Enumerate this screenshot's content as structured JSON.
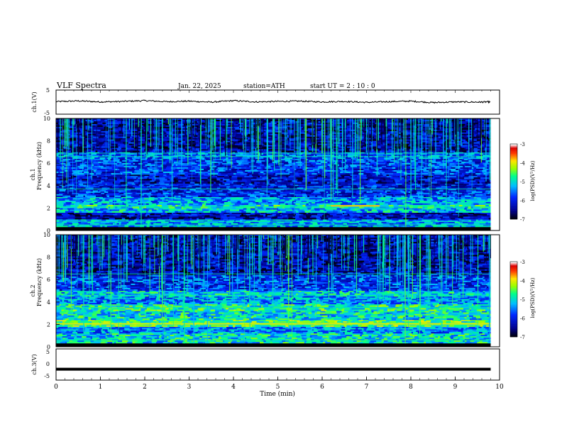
{
  "header": {
    "title": "VLF Spectra",
    "date": "Jan. 22, 2025",
    "station": "station=ATH",
    "start": "start UT = 2 : 10 : 0"
  },
  "chart_data": [
    {
      "type": "line",
      "panel": "ch1-waveform",
      "ylabel": "ch.1(V)",
      "ylim": [
        -5,
        5
      ],
      "yticks": [
        "5",
        "-5"
      ],
      "x": [
        0,
        0.5,
        1,
        1.5,
        2,
        2.5,
        3,
        3.5,
        4,
        4.5,
        5,
        5.5,
        6,
        6.5,
        7,
        7.5,
        8,
        8.5,
        9,
        9.5,
        9.8
      ],
      "y": [
        0.2,
        0.5,
        0.1,
        0.3,
        0.6,
        0.2,
        0.4,
        0.0,
        0.6,
        0.1,
        0.3,
        0.4,
        0.1,
        0.3,
        -0.1,
        0.2,
        0.4,
        -0.2,
        0.1,
        0.0,
        0.1
      ],
      "xlim": [
        0,
        10
      ],
      "line_color": "#000000"
    },
    {
      "type": "heatmap",
      "panel": "ch1-spectrogram",
      "ylabel": "ch.1 Frequency (kHz)",
      "ylim": [
        0,
        10
      ],
      "yticks": [
        "0",
        "2",
        "4",
        "6",
        "8",
        "10"
      ],
      "xlim": [
        0,
        10
      ],
      "colorbar": {
        "label": "log(PSD)(V²/Hz)",
        "ticks": [
          "-3",
          "-4",
          "-5",
          "-6",
          "-7"
        ],
        "range": [
          -7,
          -3
        ]
      },
      "bands": [
        {
          "f": [
            0.3,
            1.0
          ],
          "level": -5.3
        },
        {
          "f": [
            1.0,
            1.6
          ],
          "level": -6.3
        },
        {
          "f": [
            1.6,
            2.0
          ],
          "level": -5.2
        },
        {
          "f": [
            2.0,
            2.3
          ],
          "level": -4.9
        },
        {
          "f": [
            2.3,
            3.0
          ],
          "level": -5.3
        },
        {
          "f": [
            3.0,
            3.6
          ],
          "level": -5.9
        },
        {
          "f": [
            3.6,
            4.2
          ],
          "level": -6.0
        },
        {
          "f": [
            4.2,
            5.0
          ],
          "level": -6.2
        },
        {
          "f": [
            5.0,
            6.4
          ],
          "level": -5.8
        },
        {
          "f": [
            6.4,
            7.0
          ],
          "level": -5.6
        },
        {
          "f": [
            7.0,
            10.0
          ],
          "level": -6.3
        }
      ],
      "lines_khz": [
        0.5,
        0.8,
        2.1,
        3.7,
        6.6,
        6.9
      ],
      "strong_line": {
        "f": 2.2,
        "x": [
          6.2,
          7.3
        ],
        "level": -3.8
      }
    },
    {
      "type": "heatmap",
      "panel": "ch2-spectrogram",
      "ylabel": "ch.2 Frequency (kHz)",
      "ylim": [
        0,
        10
      ],
      "yticks": [
        "0",
        "2",
        "4",
        "6",
        "8",
        "10"
      ],
      "xlim": [
        0,
        10
      ],
      "colorbar": {
        "label": "log(PSD)(V²/Hz)",
        "ticks": [
          "-3",
          "-4",
          "-5",
          "-6",
          "-7"
        ],
        "range": [
          -7,
          -3
        ]
      },
      "bands": [
        {
          "f": [
            0.3,
            1.2
          ],
          "level": -5.0
        },
        {
          "f": [
            1.2,
            1.8
          ],
          "level": -5.4
        },
        {
          "f": [
            1.8,
            2.4
          ],
          "level": -4.6
        },
        {
          "f": [
            2.4,
            3.2
          ],
          "level": -5.0
        },
        {
          "f": [
            3.2,
            3.8
          ],
          "level": -4.8
        },
        {
          "f": [
            3.8,
            4.5
          ],
          "level": -5.4
        },
        {
          "f": [
            4.5,
            5.0
          ],
          "level": -5.1
        },
        {
          "f": [
            5.0,
            6.4
          ],
          "level": -5.8
        },
        {
          "f": [
            6.4,
            10.0
          ],
          "level": -6.3
        }
      ],
      "lines_khz": [
        0.6,
        2.0,
        2.1,
        3.5,
        4.6,
        6.5
      ],
      "strong_line": {
        "f": 2.05,
        "x": [
          0,
          9.8
        ],
        "level": -4.0
      }
    },
    {
      "type": "line",
      "panel": "ch3-waveform",
      "ylabel": "ch.3(V)",
      "ylim": [
        -5,
        5
      ],
      "yticks": [
        "5",
        "0",
        "-5"
      ],
      "x": [
        0,
        9.8
      ],
      "y": [
        -1.5,
        -1.5
      ],
      "xlim": [
        0,
        10
      ],
      "xlabel": "Time (min)",
      "xticks": [
        "0",
        "1",
        "2",
        "3",
        "4",
        "5",
        "6",
        "7",
        "8",
        "9",
        "10"
      ],
      "line_color": "#000000"
    }
  ]
}
